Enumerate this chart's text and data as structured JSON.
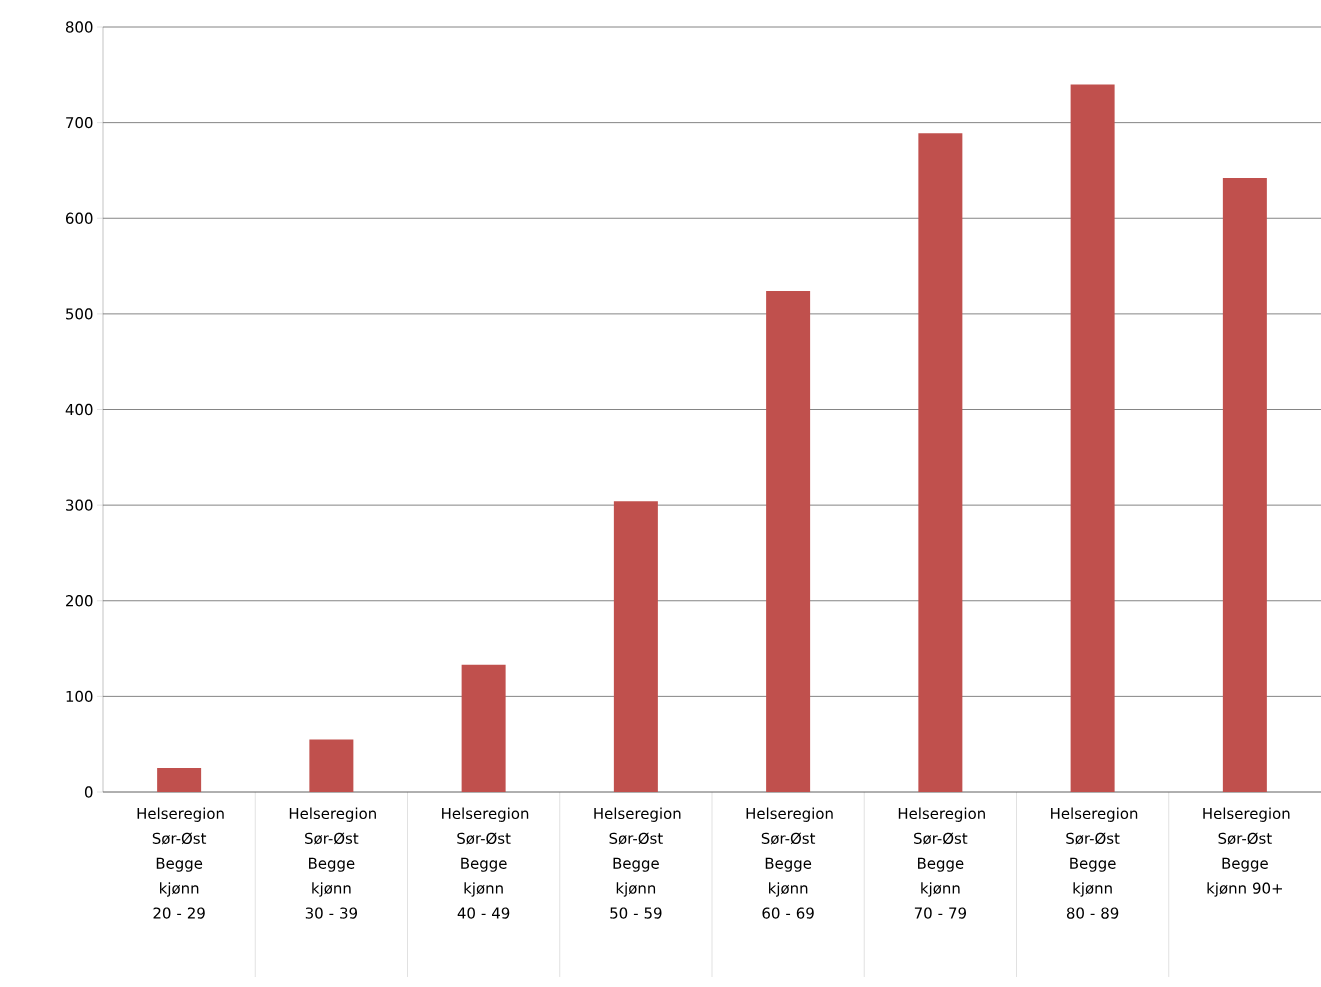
{
  "chart_data": {
    "type": "bar",
    "categories": [
      "Helseregion Sør-Øst Begge kjønn 20 - 29",
      "Helseregion Sør-Øst Begge kjønn 30 - 39",
      "Helseregion Sør-Øst Begge kjønn 40 - 49",
      "Helseregion Sør-Øst Begge kjønn 50 - 59",
      "Helseregion Sør-Øst Begge kjønn 60 - 69",
      "Helseregion Sør-Øst Begge kjønn 70 - 79",
      "Helseregion Sør-Øst Begge kjønn 80 - 89",
      "Helseregion Sør-Øst Begge kjønn 90+"
    ],
    "values": [
      25,
      55,
      133,
      304,
      524,
      689,
      740,
      642
    ],
    "color": "#c0504d",
    "ylim": [
      0,
      800
    ],
    "yticks": [
      0,
      100,
      200,
      300,
      400,
      500,
      600,
      700,
      800
    ],
    "grid": "y"
  }
}
